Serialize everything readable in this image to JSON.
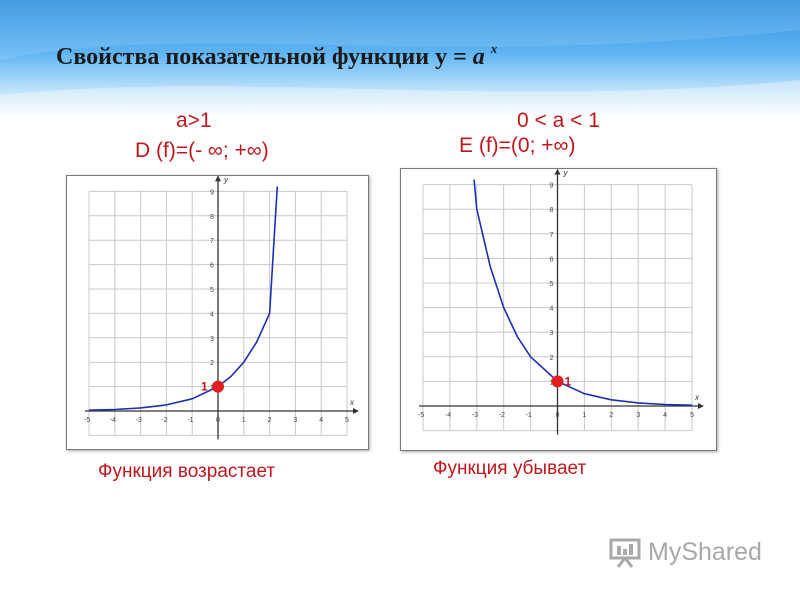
{
  "title": {
    "prefix": "Свойства показательной функции  y = ",
    "base": "a",
    "exp": "x"
  },
  "left": {
    "condition": "a>1",
    "property": "D (f)=(- ∞; +∞)",
    "caption": "Функция возрастает"
  },
  "right": {
    "condition": "0 < a < 1",
    "property": "E (f)=(0; +∞)",
    "caption": "Функция убывает"
  },
  "logo": {
    "text": "MyShared"
  },
  "colors": {
    "curve": "#1f2fb4",
    "point": "#e02020",
    "text_red": "#c0171c",
    "grid": "#c8c8c8"
  },
  "chart_data": [
    {
      "type": "line",
      "curve": "increasing exponential",
      "x": [
        -5,
        -4,
        -3,
        -2,
        -1,
        0,
        0.5,
        1,
        1.5,
        2,
        2.3
      ],
      "y": [
        0.031,
        0.063,
        0.125,
        0.25,
        0.5,
        1,
        1.414,
        2,
        2.83,
        4,
        9.2
      ],
      "xlim": [
        -5,
        5
      ],
      "ylim": [
        0,
        9
      ],
      "xticks": [
        "-5",
        "-4",
        "-3",
        "-2",
        "-1",
        "0",
        "1",
        "2",
        "3",
        "4",
        "5"
      ],
      "yticks": [
        "1",
        "2",
        "3",
        "4",
        "5",
        "6",
        "7",
        "8",
        "9"
      ],
      "xlabel": "x",
      "ylabel": "y",
      "point": {
        "x": 0,
        "y": 1,
        "label": "1"
      },
      "grid": true
    },
    {
      "type": "line",
      "curve": "decreasing exponential",
      "x": [
        -3.1,
        -3,
        -2.5,
        -2,
        -1.5,
        -1,
        0,
        1,
        2,
        3,
        4,
        5
      ],
      "y": [
        9.2,
        8,
        5.66,
        4,
        2.83,
        2,
        1,
        0.5,
        0.25,
        0.125,
        0.063,
        0.031
      ],
      "xlim": [
        -5,
        5
      ],
      "ylim": [
        0,
        9
      ],
      "xticks": [
        "-5",
        "-4",
        "-3",
        "-2",
        "-1",
        "0",
        "1",
        "2",
        "3",
        "4",
        "5"
      ],
      "yticks": [
        "1",
        "2",
        "3",
        "4",
        "5",
        "6",
        "7",
        "8",
        "9"
      ],
      "xlabel": "x",
      "ylabel": "y",
      "point": {
        "x": 0,
        "y": 1,
        "label": "1"
      },
      "grid": true
    }
  ]
}
